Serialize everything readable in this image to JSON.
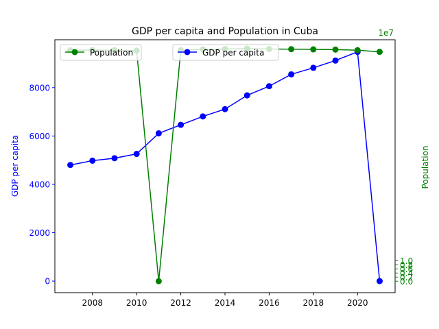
{
  "chart_data": {
    "type": "line",
    "title": "GDP per capita and Population in Cuba",
    "x": [
      2007,
      2008,
      2009,
      2010,
      2011,
      2012,
      2013,
      2014,
      2015,
      2016,
      2017,
      2018,
      2019,
      2020,
      2021
    ],
    "x_ticks": [
      2008,
      2010,
      2012,
      2014,
      2016,
      2018,
      2020
    ],
    "xlim": [
      2006.3,
      2021.7
    ],
    "xlabel": "",
    "axes": {
      "left": {
        "label": "GDP per capita",
        "color": "#0000ff",
        "ylim": [
          -480,
          9980
        ],
        "ticks": [
          0,
          2000,
          4000,
          6000,
          8000
        ]
      },
      "right": {
        "label": "Population",
        "color": "#008000",
        "ylim": [
          -0.56,
          11.78
        ],
        "ticks": [
          0.0,
          0.2,
          0.4,
          0.6,
          0.8,
          1.0
        ],
        "multiplier_label": "1e7"
      }
    },
    "series": [
      {
        "name": "GDP per capita",
        "axis": "left",
        "color": "#0000ff",
        "marker": "circle",
        "values": [
          4800,
          4980,
          5080,
          5260,
          6110,
          6460,
          6810,
          7110,
          7680,
          8060,
          8550,
          8820,
          9120,
          9480,
          0
        ]
      },
      {
        "name": "Population",
        "axis": "right",
        "color": "#008000",
        "marker": "circle",
        "values": [
          11.26,
          11.28,
          11.27,
          11.25,
          0,
          11.27,
          11.31,
          11.33,
          11.35,
          11.33,
          11.32,
          11.31,
          11.3,
          11.27,
          11.19
        ]
      }
    ],
    "legends": [
      {
        "entries": [
          "Population"
        ],
        "placement": "upper-left"
      },
      {
        "entries": [
          "GDP per capita"
        ],
        "placement": "upper-center"
      }
    ],
    "grid": false
  }
}
